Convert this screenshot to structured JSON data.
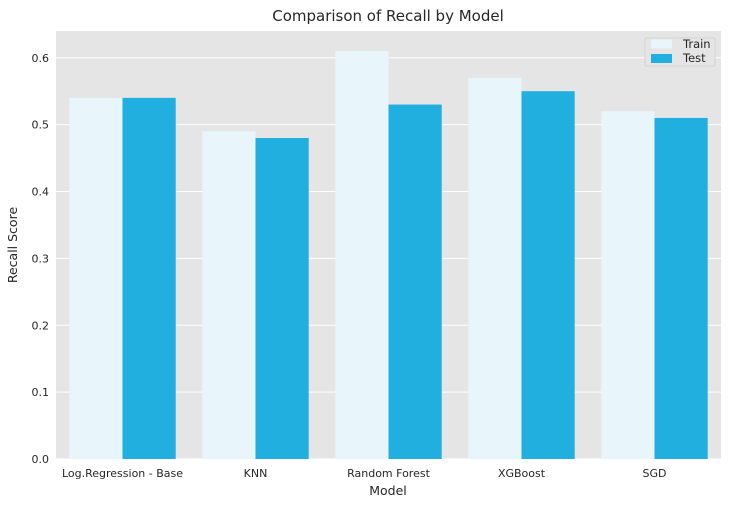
{
  "chart_data": {
    "type": "bar",
    "title": "Comparison of Recall by Model",
    "xlabel": "Model",
    "ylabel": "Recall Score",
    "categories": [
      "Log.Regression - Base",
      "KNN",
      "Random Forest",
      "XGBoost",
      "SGD"
    ],
    "series": [
      {
        "name": "Train",
        "values": [
          0.54,
          0.49,
          0.61,
          0.57,
          0.52
        ],
        "color": "#e8f6fc"
      },
      {
        "name": "Test",
        "values": [
          0.54,
          0.48,
          0.53,
          0.55,
          0.51
        ],
        "color": "#21afe0"
      }
    ],
    "ylim": [
      0,
      0.64
    ],
    "yticks": [
      "0.0",
      "0.1",
      "0.2",
      "0.3",
      "0.4",
      "0.5",
      "0.6"
    ],
    "grid": true,
    "legend_position": "top-right",
    "background_color": "#e5e5e5"
  }
}
